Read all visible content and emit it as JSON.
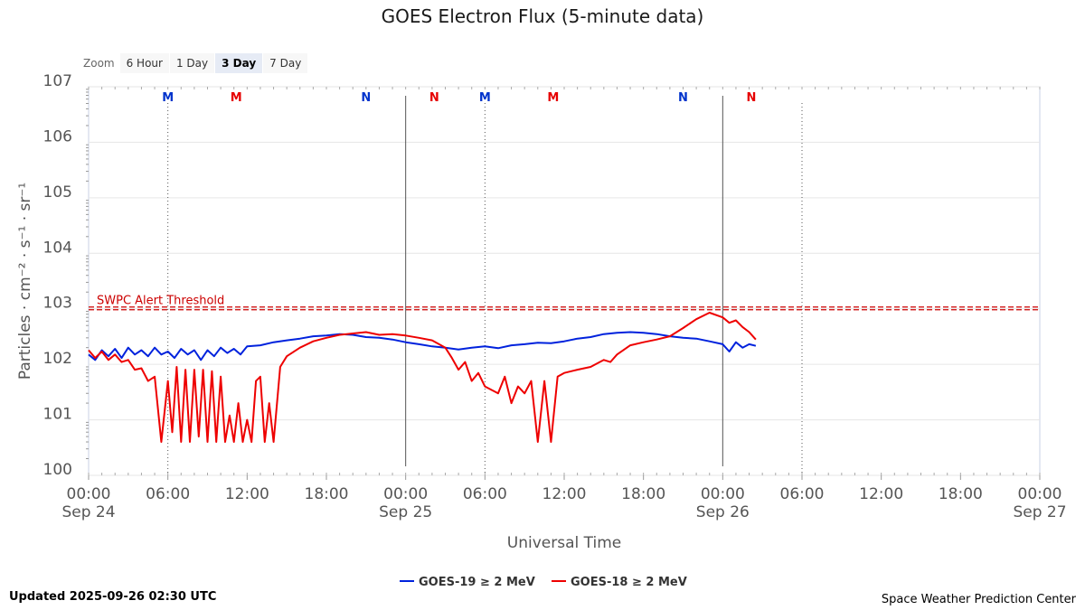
{
  "chart_data": {
    "type": "line",
    "title": "GOES Electron Flux (5-minute data)",
    "xlabel": "Universal Time",
    "ylabel": "Particles · cm⁻² · s⁻¹ · sr⁻¹",
    "y_scale": "log",
    "ylim": [
      1,
      10000000
    ],
    "y_ticks": [
      {
        "value": 1,
        "base": "10",
        "exp": "0"
      },
      {
        "value": 10,
        "base": "10",
        "exp": "1"
      },
      {
        "value": 100,
        "base": "10",
        "exp": "2"
      },
      {
        "value": 1000,
        "base": "10",
        "exp": "3"
      },
      {
        "value": 10000,
        "base": "10",
        "exp": "4"
      },
      {
        "value": 100000,
        "base": "10",
        "exp": "5"
      },
      {
        "value": 1000000,
        "base": "10",
        "exp": "6"
      },
      {
        "value": 10000000,
        "base": "10",
        "exp": "7"
      }
    ],
    "xlim": [
      "2025-09-24 00:00",
      "2025-09-27 00:00"
    ],
    "x_ticks": [
      {
        "t": "2025-09-24 00:00",
        "label": "00:00",
        "date": "Sep 24"
      },
      {
        "t": "2025-09-24 06:00",
        "label": "06:00",
        "date": ""
      },
      {
        "t": "2025-09-24 12:00",
        "label": "12:00",
        "date": ""
      },
      {
        "t": "2025-09-24 18:00",
        "label": "18:00",
        "date": ""
      },
      {
        "t": "2025-09-25 00:00",
        "label": "00:00",
        "date": "Sep 25"
      },
      {
        "t": "2025-09-25 06:00",
        "label": "06:00",
        "date": ""
      },
      {
        "t": "2025-09-25 12:00",
        "label": "12:00",
        "date": ""
      },
      {
        "t": "2025-09-25 18:00",
        "label": "18:00",
        "date": ""
      },
      {
        "t": "2025-09-26 00:00",
        "label": "00:00",
        "date": "Sep 26"
      },
      {
        "t": "2025-09-26 06:00",
        "label": "06:00",
        "date": ""
      },
      {
        "t": "2025-09-26 12:00",
        "label": "12:00",
        "date": ""
      },
      {
        "t": "2025-09-26 18:00",
        "label": "18:00",
        "date": ""
      },
      {
        "t": "2025-09-27 00:00",
        "label": "00:00",
        "date": "Sep 27"
      }
    ],
    "day_lines": [
      "2025-09-25 00:00",
      "2025-09-26 00:00"
    ],
    "grid": true,
    "threshold": {
      "value": 1000,
      "label": "SWPC Alert Threshold",
      "color": "#cc0000"
    },
    "markers": [
      {
        "t": "2025-09-24 06:00",
        "letter": "M",
        "color": "#0033cc",
        "line": true
      },
      {
        "t": "2025-09-24 11:10",
        "letter": "M",
        "color": "#e60000",
        "line": false
      },
      {
        "t": "2025-09-24 21:00",
        "letter": "N",
        "color": "#0033cc",
        "line": false
      },
      {
        "t": "2025-09-25 02:10",
        "letter": "N",
        "color": "#e60000",
        "line": false
      },
      {
        "t": "2025-09-25 06:00",
        "letter": "M",
        "color": "#0033cc",
        "line": true
      },
      {
        "t": "2025-09-25 11:10",
        "letter": "M",
        "color": "#e60000",
        "line": false
      },
      {
        "t": "2025-09-25 21:00",
        "letter": "N",
        "color": "#0033cc",
        "line": false
      },
      {
        "t": "2025-09-26 02:10",
        "letter": "N",
        "color": "#e60000",
        "line": false
      },
      {
        "t": "2025-09-26 06:00",
        "letter": "",
        "color": "#0033cc",
        "line": true
      }
    ],
    "series": [
      {
        "name": "GOES-19 ≥ 2 MeV",
        "color": "#0022dd",
        "points": [
          [
            "2025-09-24 00:00",
            150
          ],
          [
            "2025-09-24 00:30",
            120
          ],
          [
            "2025-09-24 01:00",
            180
          ],
          [
            "2025-09-24 01:30",
            140
          ],
          [
            "2025-09-24 02:00",
            190
          ],
          [
            "2025-09-24 02:30",
            130
          ],
          [
            "2025-09-24 03:00",
            200
          ],
          [
            "2025-09-24 03:30",
            150
          ],
          [
            "2025-09-24 04:00",
            180
          ],
          [
            "2025-09-24 04:30",
            140
          ],
          [
            "2025-09-24 05:00",
            200
          ],
          [
            "2025-09-24 05:30",
            150
          ],
          [
            "2025-09-24 06:00",
            170
          ],
          [
            "2025-09-24 06:30",
            130
          ],
          [
            "2025-09-24 07:00",
            190
          ],
          [
            "2025-09-24 07:30",
            150
          ],
          [
            "2025-09-24 08:00",
            180
          ],
          [
            "2025-09-24 08:30",
            120
          ],
          [
            "2025-09-24 09:00",
            180
          ],
          [
            "2025-09-24 09:30",
            140
          ],
          [
            "2025-09-24 10:00",
            200
          ],
          [
            "2025-09-24 10:30",
            160
          ],
          [
            "2025-09-24 11:00",
            190
          ],
          [
            "2025-09-24 11:30",
            150
          ],
          [
            "2025-09-24 12:00",
            210
          ],
          [
            "2025-09-24 13:00",
            220
          ],
          [
            "2025-09-24 14:00",
            250
          ],
          [
            "2025-09-24 15:00",
            270
          ],
          [
            "2025-09-24 16:00",
            290
          ],
          [
            "2025-09-24 17:00",
            320
          ],
          [
            "2025-09-24 18:00",
            330
          ],
          [
            "2025-09-24 19:00",
            350
          ],
          [
            "2025-09-24 20:00",
            340
          ],
          [
            "2025-09-24 21:00",
            310
          ],
          [
            "2025-09-24 22:00",
            300
          ],
          [
            "2025-09-24 23:00",
            280
          ],
          [
            "2025-09-25 00:00",
            250
          ],
          [
            "2025-09-25 01:00",
            230
          ],
          [
            "2025-09-25 02:00",
            210
          ],
          [
            "2025-09-25 03:00",
            200
          ],
          [
            "2025-09-25 04:00",
            185
          ],
          [
            "2025-09-25 05:00",
            200
          ],
          [
            "2025-09-25 06:00",
            210
          ],
          [
            "2025-09-25 07:00",
            195
          ],
          [
            "2025-09-25 08:00",
            220
          ],
          [
            "2025-09-25 09:00",
            230
          ],
          [
            "2025-09-25 10:00",
            245
          ],
          [
            "2025-09-25 11:00",
            240
          ],
          [
            "2025-09-25 12:00",
            260
          ],
          [
            "2025-09-25 13:00",
            290
          ],
          [
            "2025-09-25 14:00",
            310
          ],
          [
            "2025-09-25 15:00",
            350
          ],
          [
            "2025-09-25 16:00",
            370
          ],
          [
            "2025-09-25 17:00",
            380
          ],
          [
            "2025-09-25 18:00",
            370
          ],
          [
            "2025-09-25 19:00",
            350
          ],
          [
            "2025-09-25 20:00",
            320
          ],
          [
            "2025-09-25 21:00",
            300
          ],
          [
            "2025-09-25 22:00",
            290
          ],
          [
            "2025-09-25 23:00",
            260
          ],
          [
            "2025-09-26 00:00",
            230
          ],
          [
            "2025-09-26 00:30",
            170
          ],
          [
            "2025-09-26 01:00",
            250
          ],
          [
            "2025-09-26 01:30",
            200
          ],
          [
            "2025-09-26 02:00",
            230
          ],
          [
            "2025-09-26 02:30",
            215
          ]
        ]
      },
      {
        "name": "GOES-18 ≥ 2 MeV",
        "color": "#ee0000",
        "points": [
          [
            "2025-09-24 00:00",
            180
          ],
          [
            "2025-09-24 00:30",
            130
          ],
          [
            "2025-09-24 01:00",
            170
          ],
          [
            "2025-09-24 01:30",
            120
          ],
          [
            "2025-09-24 02:00",
            150
          ],
          [
            "2025-09-24 02:30",
            110
          ],
          [
            "2025-09-24 03:00",
            120
          ],
          [
            "2025-09-24 03:30",
            80
          ],
          [
            "2025-09-24 04:00",
            85
          ],
          [
            "2025-09-24 04:30",
            50
          ],
          [
            "2025-09-24 05:00",
            60
          ],
          [
            "2025-09-24 05:30",
            4
          ],
          [
            "2025-09-24 06:00",
            50
          ],
          [
            "2025-09-24 06:20",
            6
          ],
          [
            "2025-09-24 06:40",
            90
          ],
          [
            "2025-09-24 07:00",
            4
          ],
          [
            "2025-09-24 07:20",
            80
          ],
          [
            "2025-09-24 07:40",
            4
          ],
          [
            "2025-09-24 08:00",
            80
          ],
          [
            "2025-09-24 08:20",
            5
          ],
          [
            "2025-09-24 08:40",
            80
          ],
          [
            "2025-09-24 09:00",
            4
          ],
          [
            "2025-09-24 09:20",
            75
          ],
          [
            "2025-09-24 09:40",
            4
          ],
          [
            "2025-09-24 10:00",
            60
          ],
          [
            "2025-09-24 10:20",
            4
          ],
          [
            "2025-09-24 10:40",
            12
          ],
          [
            "2025-09-24 11:00",
            4
          ],
          [
            "2025-09-24 11:20",
            20
          ],
          [
            "2025-09-24 11:40",
            4
          ],
          [
            "2025-09-24 12:00",
            10
          ],
          [
            "2025-09-24 12:20",
            4
          ],
          [
            "2025-09-24 12:40",
            50
          ],
          [
            "2025-09-24 13:00",
            60
          ],
          [
            "2025-09-24 13:20",
            4
          ],
          [
            "2025-09-24 13:40",
            20
          ],
          [
            "2025-09-24 14:00",
            4
          ],
          [
            "2025-09-24 14:30",
            90
          ],
          [
            "2025-09-24 15:00",
            140
          ],
          [
            "2025-09-24 16:00",
            200
          ],
          [
            "2025-09-24 17:00",
            260
          ],
          [
            "2025-09-24 18:00",
            300
          ],
          [
            "2025-09-24 19:00",
            340
          ],
          [
            "2025-09-24 20:00",
            360
          ],
          [
            "2025-09-24 21:00",
            380
          ],
          [
            "2025-09-24 22:00",
            340
          ],
          [
            "2025-09-24 23:00",
            350
          ],
          [
            "2025-09-25 00:00",
            330
          ],
          [
            "2025-09-25 01:00",
            300
          ],
          [
            "2025-09-25 02:00",
            270
          ],
          [
            "2025-09-25 03:00",
            200
          ],
          [
            "2025-09-25 03:30",
            130
          ],
          [
            "2025-09-25 04:00",
            80
          ],
          [
            "2025-09-25 04:30",
            110
          ],
          [
            "2025-09-25 05:00",
            50
          ],
          [
            "2025-09-25 05:30",
            70
          ],
          [
            "2025-09-25 06:00",
            40
          ],
          [
            "2025-09-25 07:00",
            30
          ],
          [
            "2025-09-25 07:30",
            60
          ],
          [
            "2025-09-25 08:00",
            20
          ],
          [
            "2025-09-25 08:30",
            40
          ],
          [
            "2025-09-25 09:00",
            30
          ],
          [
            "2025-09-25 09:30",
            50
          ],
          [
            "2025-09-25 10:00",
            4
          ],
          [
            "2025-09-25 10:30",
            50
          ],
          [
            "2025-09-25 11:00",
            4
          ],
          [
            "2025-09-25 11:30",
            60
          ],
          [
            "2025-09-25 12:00",
            70
          ],
          [
            "2025-09-25 13:00",
            80
          ],
          [
            "2025-09-25 14:00",
            90
          ],
          [
            "2025-09-25 15:00",
            120
          ],
          [
            "2025-09-25 15:30",
            110
          ],
          [
            "2025-09-25 16:00",
            150
          ],
          [
            "2025-09-25 17:00",
            220
          ],
          [
            "2025-09-25 18:00",
            250
          ],
          [
            "2025-09-25 19:00",
            280
          ],
          [
            "2025-09-25 20:00",
            320
          ],
          [
            "2025-09-25 21:00",
            450
          ],
          [
            "2025-09-25 22:00",
            650
          ],
          [
            "2025-09-25 23:00",
            850
          ],
          [
            "2025-09-26 00:00",
            700
          ],
          [
            "2025-09-26 00:30",
            560
          ],
          [
            "2025-09-26 01:00",
            620
          ],
          [
            "2025-09-26 01:30",
            470
          ],
          [
            "2025-09-26 02:00",
            380
          ],
          [
            "2025-09-26 02:30",
            280
          ]
        ]
      }
    ]
  },
  "zoom": {
    "label": "Zoom",
    "buttons": [
      "6 Hour",
      "1 Day",
      "3 Day",
      "7 Day"
    ],
    "active": "3 Day"
  },
  "footer": {
    "updated": "Updated 2025-09-26 02:30 UTC",
    "credit": "Space Weather Prediction Center"
  }
}
